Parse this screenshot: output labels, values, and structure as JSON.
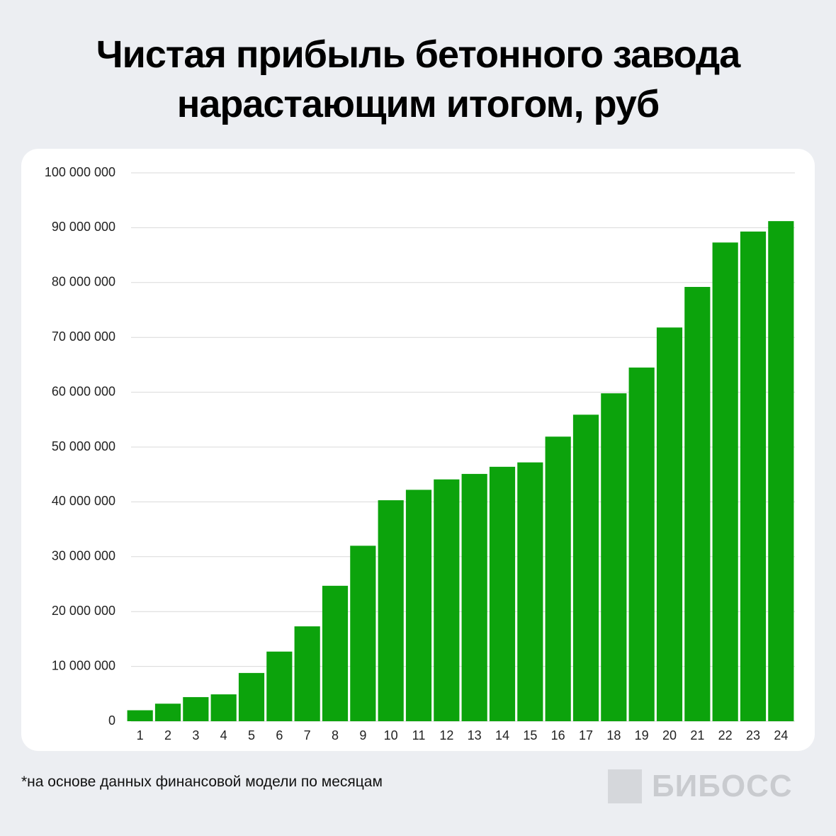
{
  "chart_data": {
    "type": "bar",
    "title": "Чистая прибыль бетонного завода нарастающим итогом, руб",
    "categories": [
      "1",
      "2",
      "3",
      "4",
      "5",
      "6",
      "7",
      "8",
      "9",
      "10",
      "11",
      "12",
      "13",
      "14",
      "15",
      "16",
      "17",
      "18",
      "19",
      "20",
      "21",
      "22",
      "23",
      "24"
    ],
    "values": [
      2000000,
      3200000,
      4400000,
      4900000,
      8800000,
      12700000,
      17300000,
      24700000,
      32000000,
      40300000,
      42200000,
      44100000,
      45100000,
      46400000,
      47200000,
      51900000,
      55900000,
      59800000,
      64500000,
      71800000,
      79200000,
      87300000,
      89300000,
      91200000
    ],
    "color": "#0ca30c",
    "ylim": [
      0,
      100000000
    ],
    "yticks": [
      0,
      {
        "value": 10000000,
        "label": "10 000 000"
      },
      {
        "value": 20000000,
        "label": "20 000 000"
      },
      {
        "value": 30000000,
        "label": "30 000 000"
      },
      {
        "value": 40000000,
        "label": "40 000 000"
      },
      {
        "value": 50000000,
        "label": "50 000 000"
      },
      {
        "value": 60000000,
        "label": "60 000 000"
      },
      {
        "value": 70000000,
        "label": "70 000 000"
      },
      {
        "value": 80000000,
        "label": "80 000 000"
      },
      {
        "value": 90000000,
        "label": "90 000 000"
      },
      {
        "value": 100000000,
        "label": "100 000 000"
      }
    ],
    "grid": true,
    "footnote": "*на основе данных финансовой модели по месяцам",
    "brand": "БИБОСС"
  }
}
